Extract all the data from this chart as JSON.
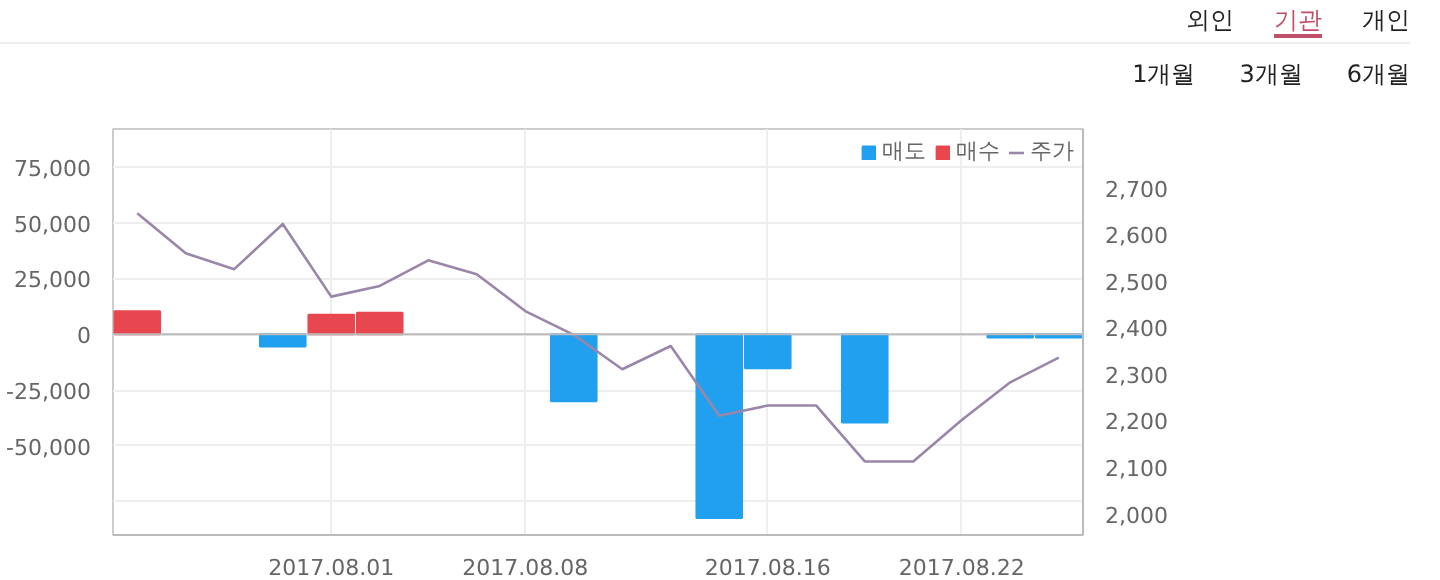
{
  "chart_data": {
    "type": "bar",
    "categories": [
      null,
      null,
      null,
      null,
      "2017.08.01",
      null,
      null,
      null,
      "2017.08.08",
      null,
      null,
      null,
      null,
      "2017.08.16",
      null,
      null,
      null,
      "2017.08.22",
      null,
      null
    ],
    "series": [
      {
        "name": "매도",
        "color": "#22a0f0",
        "values": [
          null,
          null,
          null,
          -5500,
          null,
          null,
          null,
          null,
          null,
          -30000,
          null,
          null,
          -82400,
          -15300,
          null,
          -39600,
          null,
          null,
          -1500,
          -1500
        ]
      },
      {
        "name": "매수",
        "color": "#e8474f",
        "values": [
          10300,
          null,
          null,
          null,
          8700,
          9600,
          null,
          null,
          null,
          null,
          null,
          null,
          null,
          null,
          null,
          null,
          null,
          null,
          null,
          null
        ]
      },
      {
        "name": "주가",
        "color": "#9a86a8",
        "type": "line",
        "axis": "y2",
        "values": [
          2645,
          2559,
          2525,
          2622,
          2466,
          2489,
          2544,
          2514,
          2435,
          2384,
          2310,
          2360,
          2210,
          2232,
          2232,
          2112,
          2112,
          2201,
          2282,
          2335
        ]
      }
    ],
    "ylim": [
      -90000,
      92000
    ],
    "yticks": [
      {
        "value": -75000,
        "label": null
      },
      {
        "value": -50000,
        "label": "-50,000"
      },
      {
        "value": -25000,
        "label": "-25,000"
      },
      0,
      {
        "value": 25000,
        "label": "25,000"
      },
      {
        "value": 50000,
        "label": "50,000"
      },
      {
        "value": 75000,
        "label": "75,000"
      }
    ],
    "y2lim": [
      1954,
      2826
    ],
    "y2ticks": [
      {
        "value": 2000,
        "label": "2,000"
      },
      {
        "value": 2100,
        "label": "2,100"
      },
      {
        "value": 2200,
        "label": "2,200"
      },
      {
        "value": 2300,
        "label": "2,300"
      },
      {
        "value": 2400,
        "label": "2,400"
      },
      {
        "value": 2500,
        "label": "2,500"
      },
      {
        "value": 2600,
        "label": "2,600"
      },
      {
        "value": 2700,
        "label": "2,700"
      }
    ],
    "grid": true,
    "legend": "top right",
    "annotations": [
      "외인",
      "기관",
      "개인",
      "1개월",
      "3개월",
      "6개월"
    ]
  }
}
